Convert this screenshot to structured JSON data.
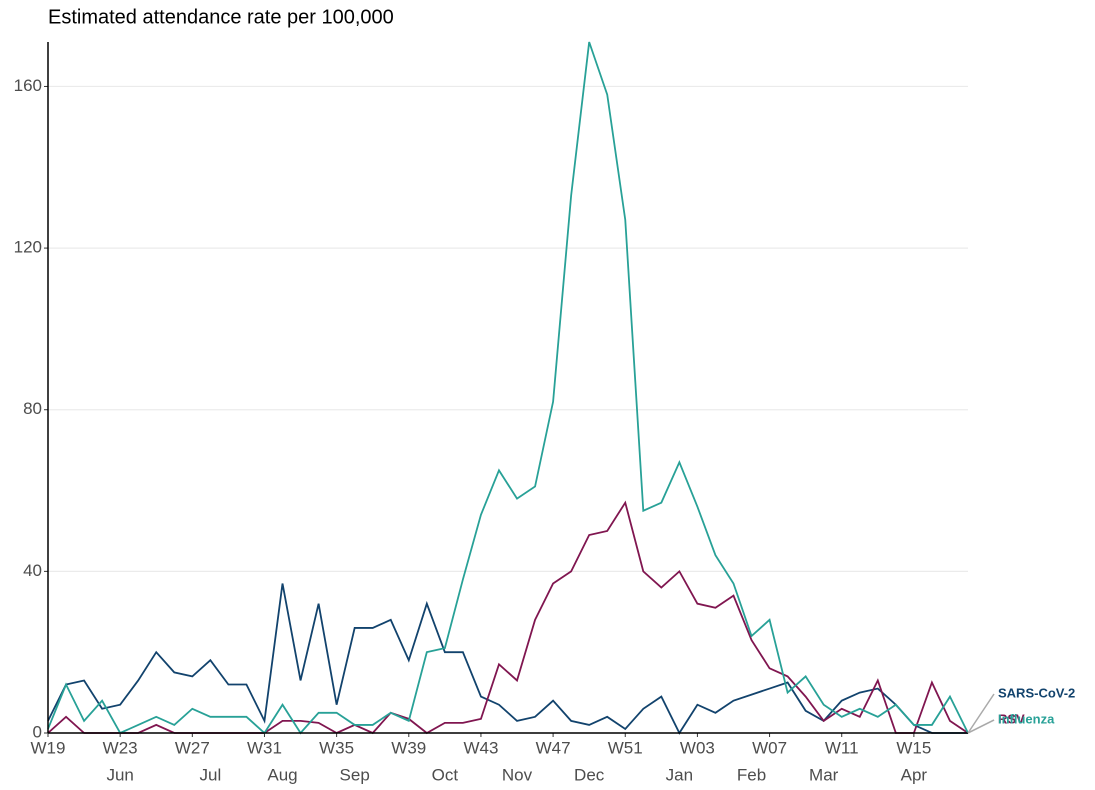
{
  "chart_data": {
    "type": "line",
    "title": "Estimated attendance rate per 100,000",
    "categories": [
      "W19",
      null,
      null,
      null,
      "W23",
      null,
      null,
      null,
      "W27",
      null,
      null,
      null,
      "W31",
      null,
      null,
      null,
      "W35",
      null,
      null,
      null,
      "W39",
      null,
      null,
      null,
      "W43",
      null,
      null,
      null,
      "W47",
      null,
      null,
      null,
      "W51",
      null,
      null,
      null,
      "W03",
      null,
      null,
      null,
      "W07",
      null,
      null,
      null,
      "W11",
      null,
      null,
      null,
      "W15",
      null,
      null,
      null
    ],
    "months": [
      null,
      null,
      null,
      null,
      "Jun",
      null,
      null,
      null,
      null,
      "Jul",
      null,
      null,
      null,
      "Aug",
      null,
      null,
      null,
      "Sep",
      null,
      null,
      null,
      null,
      "Oct",
      null,
      null,
      null,
      "Nov",
      null,
      null,
      null,
      "Dec",
      null,
      null,
      null,
      null,
      "Jan",
      null,
      null,
      null,
      "Feb",
      null,
      null,
      null,
      "Mar",
      null,
      null,
      null,
      null,
      "Apr",
      null,
      null,
      null
    ],
    "series": [
      {
        "name": "SARS-CoV-2",
        "color": "#12436d",
        "values": [
          3,
          12,
          13,
          6,
          7,
          13,
          20,
          15,
          14,
          18,
          12,
          12,
          3,
          37,
          13,
          32,
          7,
          26,
          26,
          28,
          18,
          32,
          20,
          20,
          9,
          7,
          3,
          4,
          8,
          3,
          2,
          4,
          1,
          6,
          9,
          0,
          7,
          5,
          8,
          9.5,
          11,
          12.5,
          5.5,
          3,
          8,
          10,
          11,
          7,
          2,
          0,
          0,
          0
        ]
      },
      {
        "name": "RSV",
        "color": "#801650",
        "values": [
          0,
          4,
          0,
          0,
          0,
          0,
          2,
          0,
          0,
          0,
          0,
          0,
          0,
          3,
          3,
          2.5,
          0,
          2,
          0,
          5,
          3.5,
          0,
          2.5,
          2.5,
          3.5,
          17,
          13,
          28,
          37,
          40,
          49,
          50,
          57,
          40,
          36,
          40,
          32,
          31,
          34,
          23,
          16,
          14,
          9,
          3,
          6,
          4,
          13,
          0,
          0,
          12.5,
          3,
          0
        ]
      },
      {
        "name": "Influenza",
        "color": "#28a197",
        "values": [
          1,
          12,
          3,
          8,
          0,
          2,
          4,
          2,
          6,
          4,
          4,
          4,
          0,
          7,
          0,
          5,
          5,
          2,
          2,
          5,
          3,
          20,
          21,
          38,
          54,
          65,
          58,
          61,
          82,
          133,
          171,
          158,
          127,
          55,
          57,
          67,
          56,
          44,
          37,
          24,
          28,
          10,
          14,
          7,
          4,
          6,
          4,
          7,
          2,
          2,
          9,
          0
        ]
      }
    ],
    "ylim": [
      0,
      171
    ],
    "yticks": [
      0,
      40,
      80,
      120,
      160
    ],
    "grid": true
  }
}
